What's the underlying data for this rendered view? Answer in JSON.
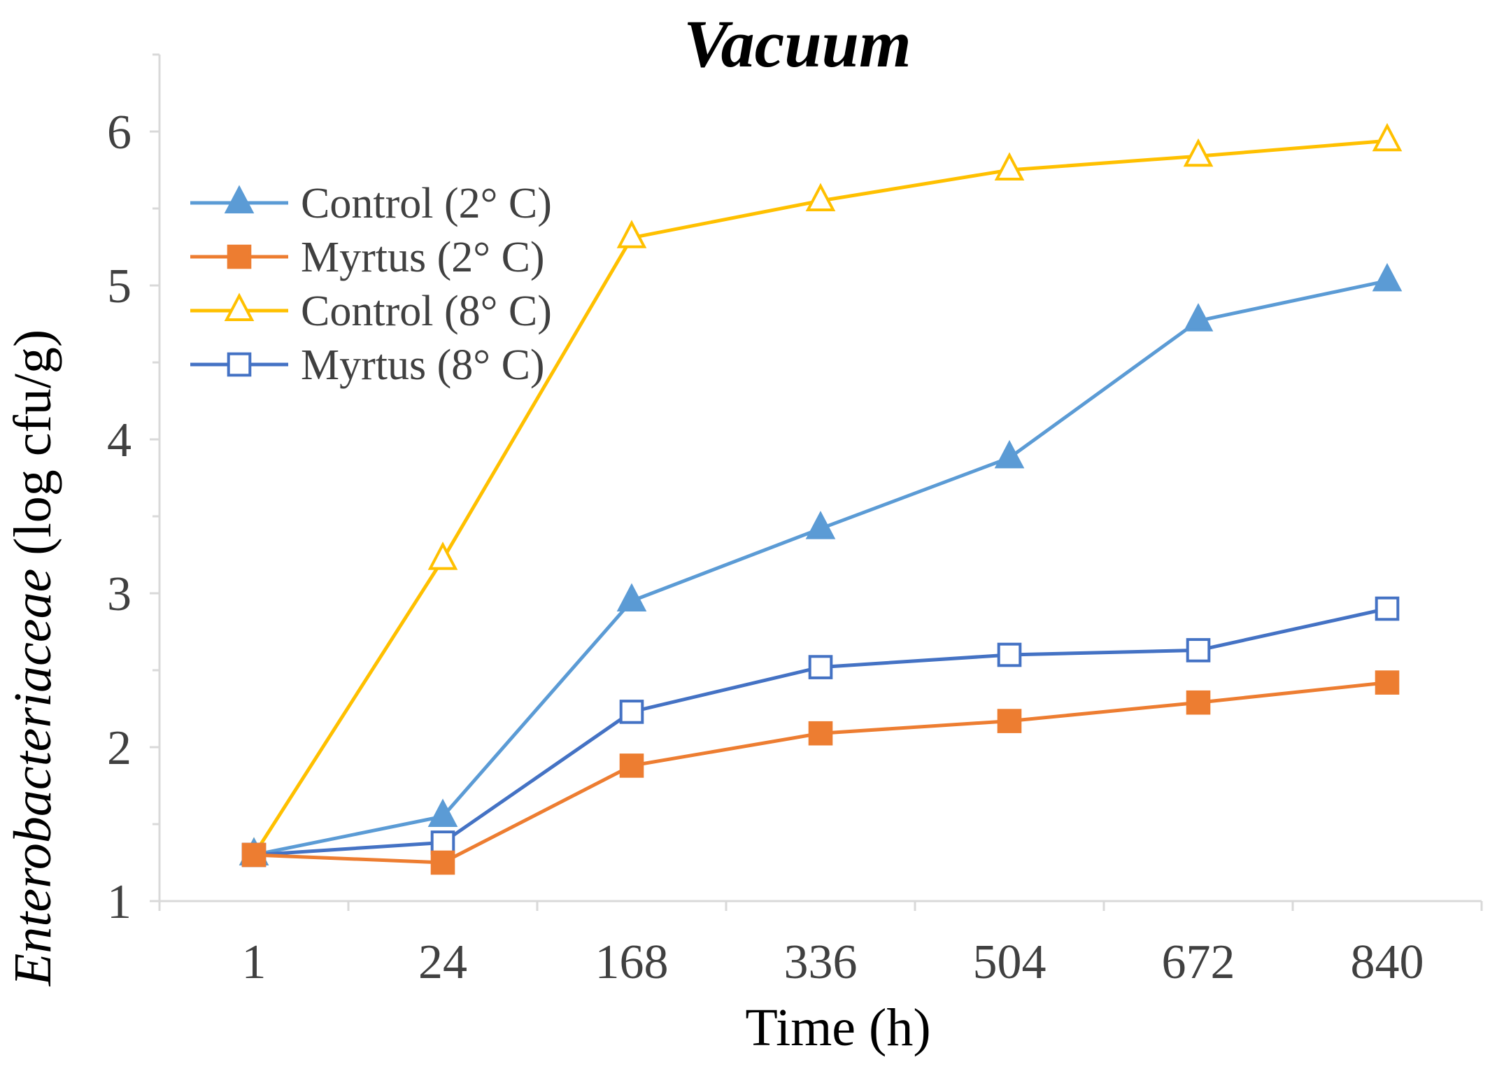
{
  "chart_data": {
    "type": "line",
    "title": "Vacuum",
    "xlabel": "Time (h)",
    "ylabel_italic": "Enterobacteriaceae",
    "ylabel_rest": " (log cfu/g)",
    "categories": [
      "1",
      "24",
      "168",
      "336",
      "504",
      "672",
      "840"
    ],
    "ylim": [
      1,
      6.5
    ],
    "y_ticks": [
      1,
      2,
      3,
      4,
      5,
      6
    ],
    "y_minor_ticks": [
      1.5,
      2.5,
      3.5,
      4.5,
      5.5,
      6.5
    ],
    "grid": false,
    "legend_position": "top-left",
    "series": [
      {
        "name": "Control (2° C)",
        "color": "#5b9bd5",
        "marker": "triangle",
        "filled": true,
        "values": [
          1.3,
          1.55,
          2.95,
          3.42,
          3.88,
          4.77,
          5.03
        ]
      },
      {
        "name": "Myrtus (2° C)",
        "color": "#ed7d31",
        "marker": "square",
        "filled": true,
        "values": [
          1.3,
          1.25,
          1.88,
          2.09,
          2.17,
          2.29,
          2.42
        ]
      },
      {
        "name": "Control (8° C)",
        "color": "#ffc000",
        "marker": "triangle",
        "filled": false,
        "values": [
          1.3,
          3.22,
          5.31,
          5.55,
          5.75,
          5.84,
          5.94
        ]
      },
      {
        "name": "Myrtus (8° C)",
        "color": "#4472c4",
        "marker": "square",
        "filled": false,
        "values": [
          1.3,
          1.38,
          2.23,
          2.52,
          2.6,
          2.63,
          2.9
        ]
      }
    ]
  }
}
